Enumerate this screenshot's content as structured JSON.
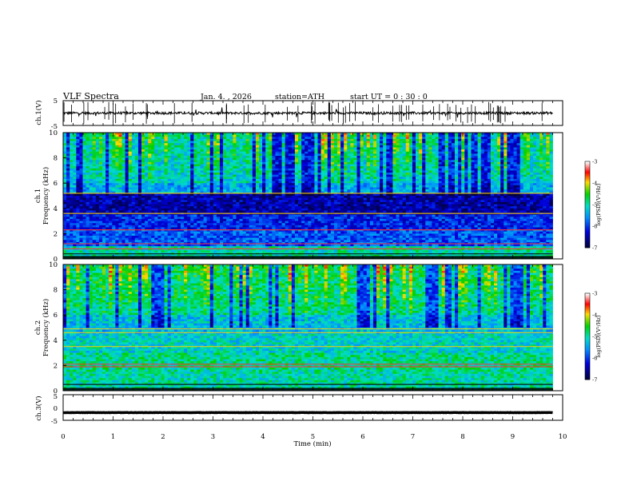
{
  "header": {
    "title": "VLF  Spectra",
    "date": "Jan. 4.  , 2026",
    "station": "station=ATH",
    "start_ut": "start  UT  =    0  : 30 : 0"
  },
  "colorbar": {
    "label": "log(PSD)(V²/Hz)",
    "ticks": [
      "-3",
      "-4",
      "-5",
      "-6",
      "-7"
    ],
    "colors": [
      "#ffffff",
      "#ff0000",
      "#ffd000",
      "#00d400",
      "#00c8ff",
      "#0000ff",
      "#000040"
    ]
  },
  "chart_data": [
    {
      "id": "ch1-waveform",
      "type": "line",
      "ylabel": "ch.1(V)",
      "ylim": [
        -5,
        5
      ],
      "yticks": [
        "5",
        "-5"
      ],
      "xlim": [
        0,
        10
      ],
      "mean": 0,
      "noise_amplitude": 0.5,
      "color": "#000000"
    },
    {
      "id": "ch1-spectrogram",
      "type": "heatmap",
      "ylabel": "ch.1\nFrequency (kHz)",
      "ylim": [
        0,
        10
      ],
      "yticks": [
        "10",
        "8",
        "6",
        "4",
        "2",
        "0"
      ],
      "xlim": [
        0,
        10
      ],
      "data_end_min": 9.8,
      "zlim": [
        -7,
        -3
      ],
      "zlabel": "log(PSD)(V²/Hz)"
    },
    {
      "id": "ch2-spectrogram",
      "type": "heatmap",
      "ylabel": "ch.2\nFrequency (kHz)",
      "ylim": [
        0,
        10
      ],
      "yticks": [
        "10",
        "8",
        "6",
        "4",
        "2",
        "0"
      ],
      "xlim": [
        0,
        10
      ],
      "data_end_min": 9.8,
      "zlim": [
        -7,
        -3
      ],
      "zlabel": "log(PSD)(V²/Hz)"
    },
    {
      "id": "ch3-waveform",
      "type": "line",
      "ylabel": "ch.3(V)",
      "ylim": [
        -5,
        5
      ],
      "yticks": [
        "5",
        "0",
        "-5"
      ],
      "xlim": [
        0,
        10
      ],
      "mean": -2,
      "noise_amplitude": 0.05,
      "color": "#000000"
    }
  ],
  "xaxis": {
    "label": "Time  (min)",
    "ticks": [
      "0",
      "1",
      "2",
      "3",
      "4",
      "5",
      "6",
      "7",
      "8",
      "9",
      "10"
    ]
  }
}
